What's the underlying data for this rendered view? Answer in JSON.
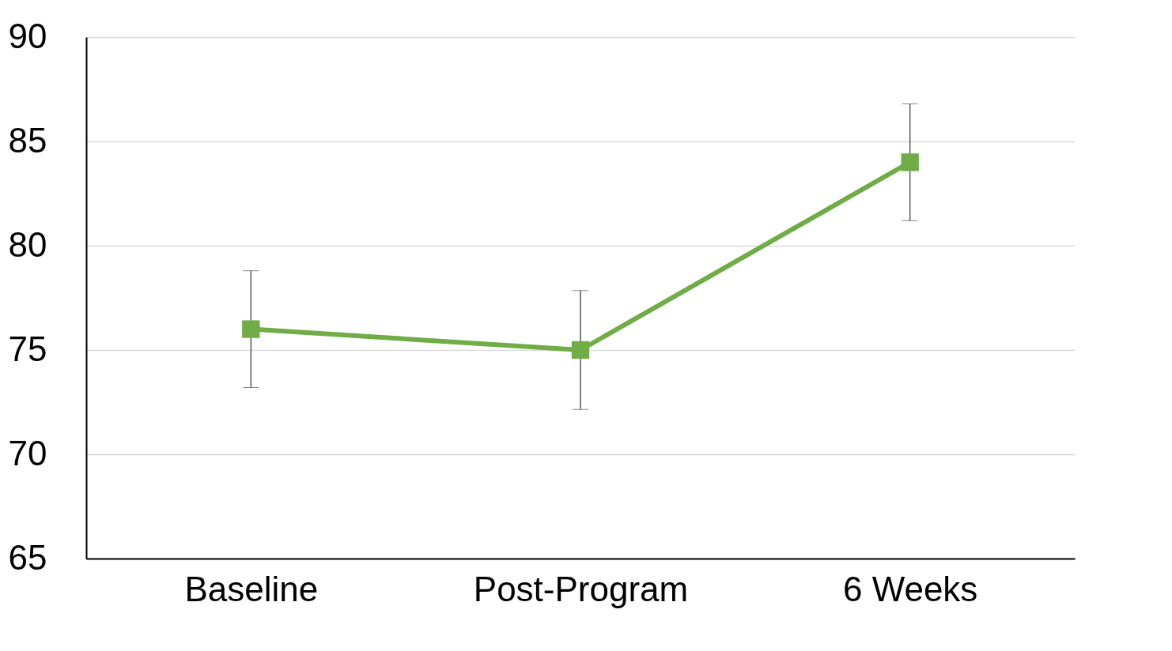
{
  "chart_data": {
    "type": "line",
    "categories": [
      "Baseline",
      "Post-Program",
      "6 Weeks"
    ],
    "series": [
      {
        "color": "#70ad47",
        "values": [
          76,
          75,
          84
        ],
        "errors": [
          2.8,
          2.85,
          2.8
        ]
      }
    ],
    "ylim": [
      65,
      90
    ],
    "yticks": [
      65,
      70,
      75,
      80,
      85,
      90
    ],
    "grid": "y",
    "marker": "square"
  }
}
